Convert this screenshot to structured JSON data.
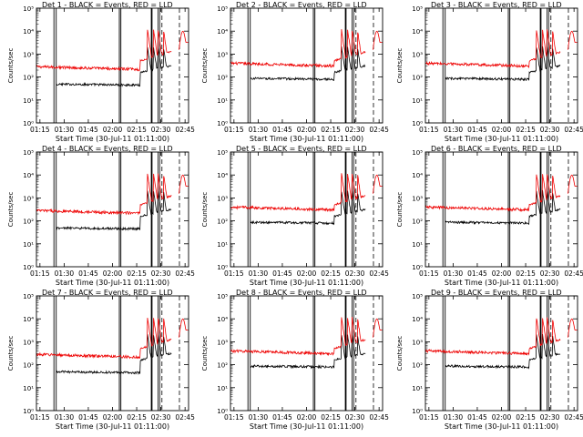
{
  "colors": {
    "events": "#000000",
    "lld": "#ee0000",
    "axis": "#000000",
    "background": "#ffffff"
  },
  "chart_data": [
    {
      "type": "line",
      "title": "Det 1 - BLACK = Events, RED = LLD",
      "xlabel": "Start Time (30-Jul-11 01:11:00)",
      "ylabel": "Counts/sec",
      "ylim": [
        1,
        100000
      ],
      "yscale": "log",
      "xlim": [
        0,
        100
      ],
      "x_ticks": [
        "01:15",
        "01:30",
        "01:45",
        "02:00",
        "02:15",
        "02:30",
        "02:45"
      ],
      "y_ticks": [
        "10⁰",
        "10¹",
        "10²",
        "10³",
        "10⁴",
        "10⁵"
      ],
      "series": [
        {
          "name": "BLACK = Events",
          "color": "#000000"
        },
        {
          "name": "RED = LLD",
          "color": "#ee0000"
        }
      ]
    },
    {
      "type": "line",
      "title": "Det 2 - BLACK = Events, RED = LLD",
      "xlabel": "Start Time (30-Jul-11 01:11:00)",
      "ylabel": "Counts/sec",
      "ylim": [
        1,
        100000
      ],
      "yscale": "log",
      "xlim": [
        0,
        100
      ],
      "x_ticks": [
        "01:15",
        "01:30",
        "01:45",
        "02:00",
        "02:15",
        "02:30",
        "02:45"
      ],
      "y_ticks": [
        "10⁰",
        "10¹",
        "10²",
        "10³",
        "10⁴",
        "10⁵"
      ],
      "series": [
        {
          "name": "BLACK = Events",
          "color": "#000000"
        },
        {
          "name": "RED = LLD",
          "color": "#ee0000"
        }
      ]
    },
    {
      "type": "line",
      "title": "Det 3 - BLACK = Events, RED = LLD",
      "xlabel": "Start Time (30-Jul-11 01:11:00)",
      "ylabel": "Counts/sec",
      "ylim": [
        1,
        100000
      ],
      "yscale": "log",
      "xlim": [
        0,
        100
      ],
      "x_ticks": [
        "01:15",
        "01:30",
        "01:45",
        "02:00",
        "02:15",
        "02:30",
        "02:45"
      ],
      "y_ticks": [
        "10⁰",
        "10¹",
        "10²",
        "10³",
        "10⁴",
        "10⁵"
      ],
      "series": [
        {
          "name": "BLACK = Events",
          "color": "#000000"
        },
        {
          "name": "RED = LLD",
          "color": "#ee0000"
        }
      ]
    },
    {
      "type": "line",
      "title": "Det 4 - BLACK = Events, RED = LLD",
      "xlabel": "Start Time (30-Jul-11 01:11:00)",
      "ylabel": "Counts/sec",
      "ylim": [
        1,
        100000
      ],
      "yscale": "log",
      "xlim": [
        0,
        100
      ],
      "x_ticks": [
        "01:15",
        "01:30",
        "01:45",
        "02:00",
        "02:15",
        "02:30",
        "02:45"
      ],
      "y_ticks": [
        "10⁰",
        "10¹",
        "10²",
        "10³",
        "10⁴",
        "10⁵"
      ],
      "series": [
        {
          "name": "BLACK = Events",
          "color": "#000000"
        },
        {
          "name": "RED = LLD",
          "color": "#ee0000"
        }
      ]
    },
    {
      "type": "line",
      "title": "Det 5 - BLACK = Events, RED = LLD",
      "xlabel": "Start Time (30-Jul-11 01:11:00)",
      "ylabel": "Counts/sec",
      "ylim": [
        1,
        100000
      ],
      "yscale": "log",
      "xlim": [
        0,
        100
      ],
      "x_ticks": [
        "01:15",
        "01:30",
        "01:45",
        "02:00",
        "02:15",
        "02:30",
        "02:45"
      ],
      "y_ticks": [
        "10⁰",
        "10¹",
        "10²",
        "10³",
        "10⁴",
        "10⁵"
      ],
      "series": [
        {
          "name": "BLACK = Events",
          "color": "#000000"
        },
        {
          "name": "RED = LLD",
          "color": "#ee0000"
        }
      ]
    },
    {
      "type": "line",
      "title": "Det 6 - BLACK = Events, RED = LLD",
      "xlabel": "Start Time (30-Jul-11 01:11:00)",
      "ylabel": "Counts/sec",
      "ylim": [
        1,
        100000
      ],
      "yscale": "log",
      "xlim": [
        0,
        100
      ],
      "x_ticks": [
        "01:15",
        "01:30",
        "01:45",
        "02:00",
        "02:15",
        "02:30",
        "02:45"
      ],
      "y_ticks": [
        "10⁰",
        "10¹",
        "10²",
        "10³",
        "10⁴",
        "10⁵"
      ],
      "series": [
        {
          "name": "BLACK = Events",
          "color": "#000000"
        },
        {
          "name": "RED = LLD",
          "color": "#ee0000"
        }
      ]
    },
    {
      "type": "line",
      "title": "Det 7 - BLACK = Events, RED = LLD",
      "xlabel": "Start Time (30-Jul-11 01:11:00)",
      "ylabel": "Counts/sec",
      "ylim": [
        1,
        100000
      ],
      "yscale": "log",
      "xlim": [
        0,
        100
      ],
      "x_ticks": [
        "01:15",
        "01:30",
        "01:45",
        "02:00",
        "02:15",
        "02:30",
        "02:45"
      ],
      "y_ticks": [
        "10⁰",
        "10¹",
        "10²",
        "10³",
        "10⁴",
        "10⁵"
      ],
      "series": [
        {
          "name": "BLACK = Events",
          "color": "#000000"
        },
        {
          "name": "RED = LLD",
          "color": "#ee0000"
        }
      ]
    },
    {
      "type": "line",
      "title": "Det 8 - BLACK = Events, RED = LLD",
      "xlabel": "Start Time (30-Jul-11 01:11:00)",
      "ylabel": "Counts/sec",
      "ylim": [
        1,
        100000
      ],
      "yscale": "log",
      "xlim": [
        0,
        100
      ],
      "x_ticks": [
        "01:15",
        "01:30",
        "01:45",
        "02:00",
        "02:15",
        "02:30",
        "02:45"
      ],
      "y_ticks": [
        "10⁰",
        "10¹",
        "10²",
        "10³",
        "10⁴",
        "10⁵"
      ],
      "series": [
        {
          "name": "BLACK = Events",
          "color": "#000000"
        },
        {
          "name": "RED = LLD",
          "color": "#ee0000"
        }
      ]
    },
    {
      "type": "line",
      "title": "Det 9 - BLACK = Events, RED = LLD",
      "xlabel": "Start Time (30-Jul-11 01:11:00)",
      "ylabel": "Counts/sec",
      "ylim": [
        1,
        100000
      ],
      "yscale": "log",
      "xlim": [
        0,
        100
      ],
      "x_ticks": [
        "01:15",
        "01:30",
        "01:45",
        "02:00",
        "02:15",
        "02:30",
        "02:45"
      ],
      "y_ticks": [
        "10⁰",
        "10¹",
        "10²",
        "10³",
        "10⁴",
        "10⁵"
      ],
      "series": [
        {
          "name": "BLACK = Events",
          "color": "#000000"
        },
        {
          "name": "RED = LLD",
          "color": "#ee0000"
        }
      ]
    }
  ]
}
